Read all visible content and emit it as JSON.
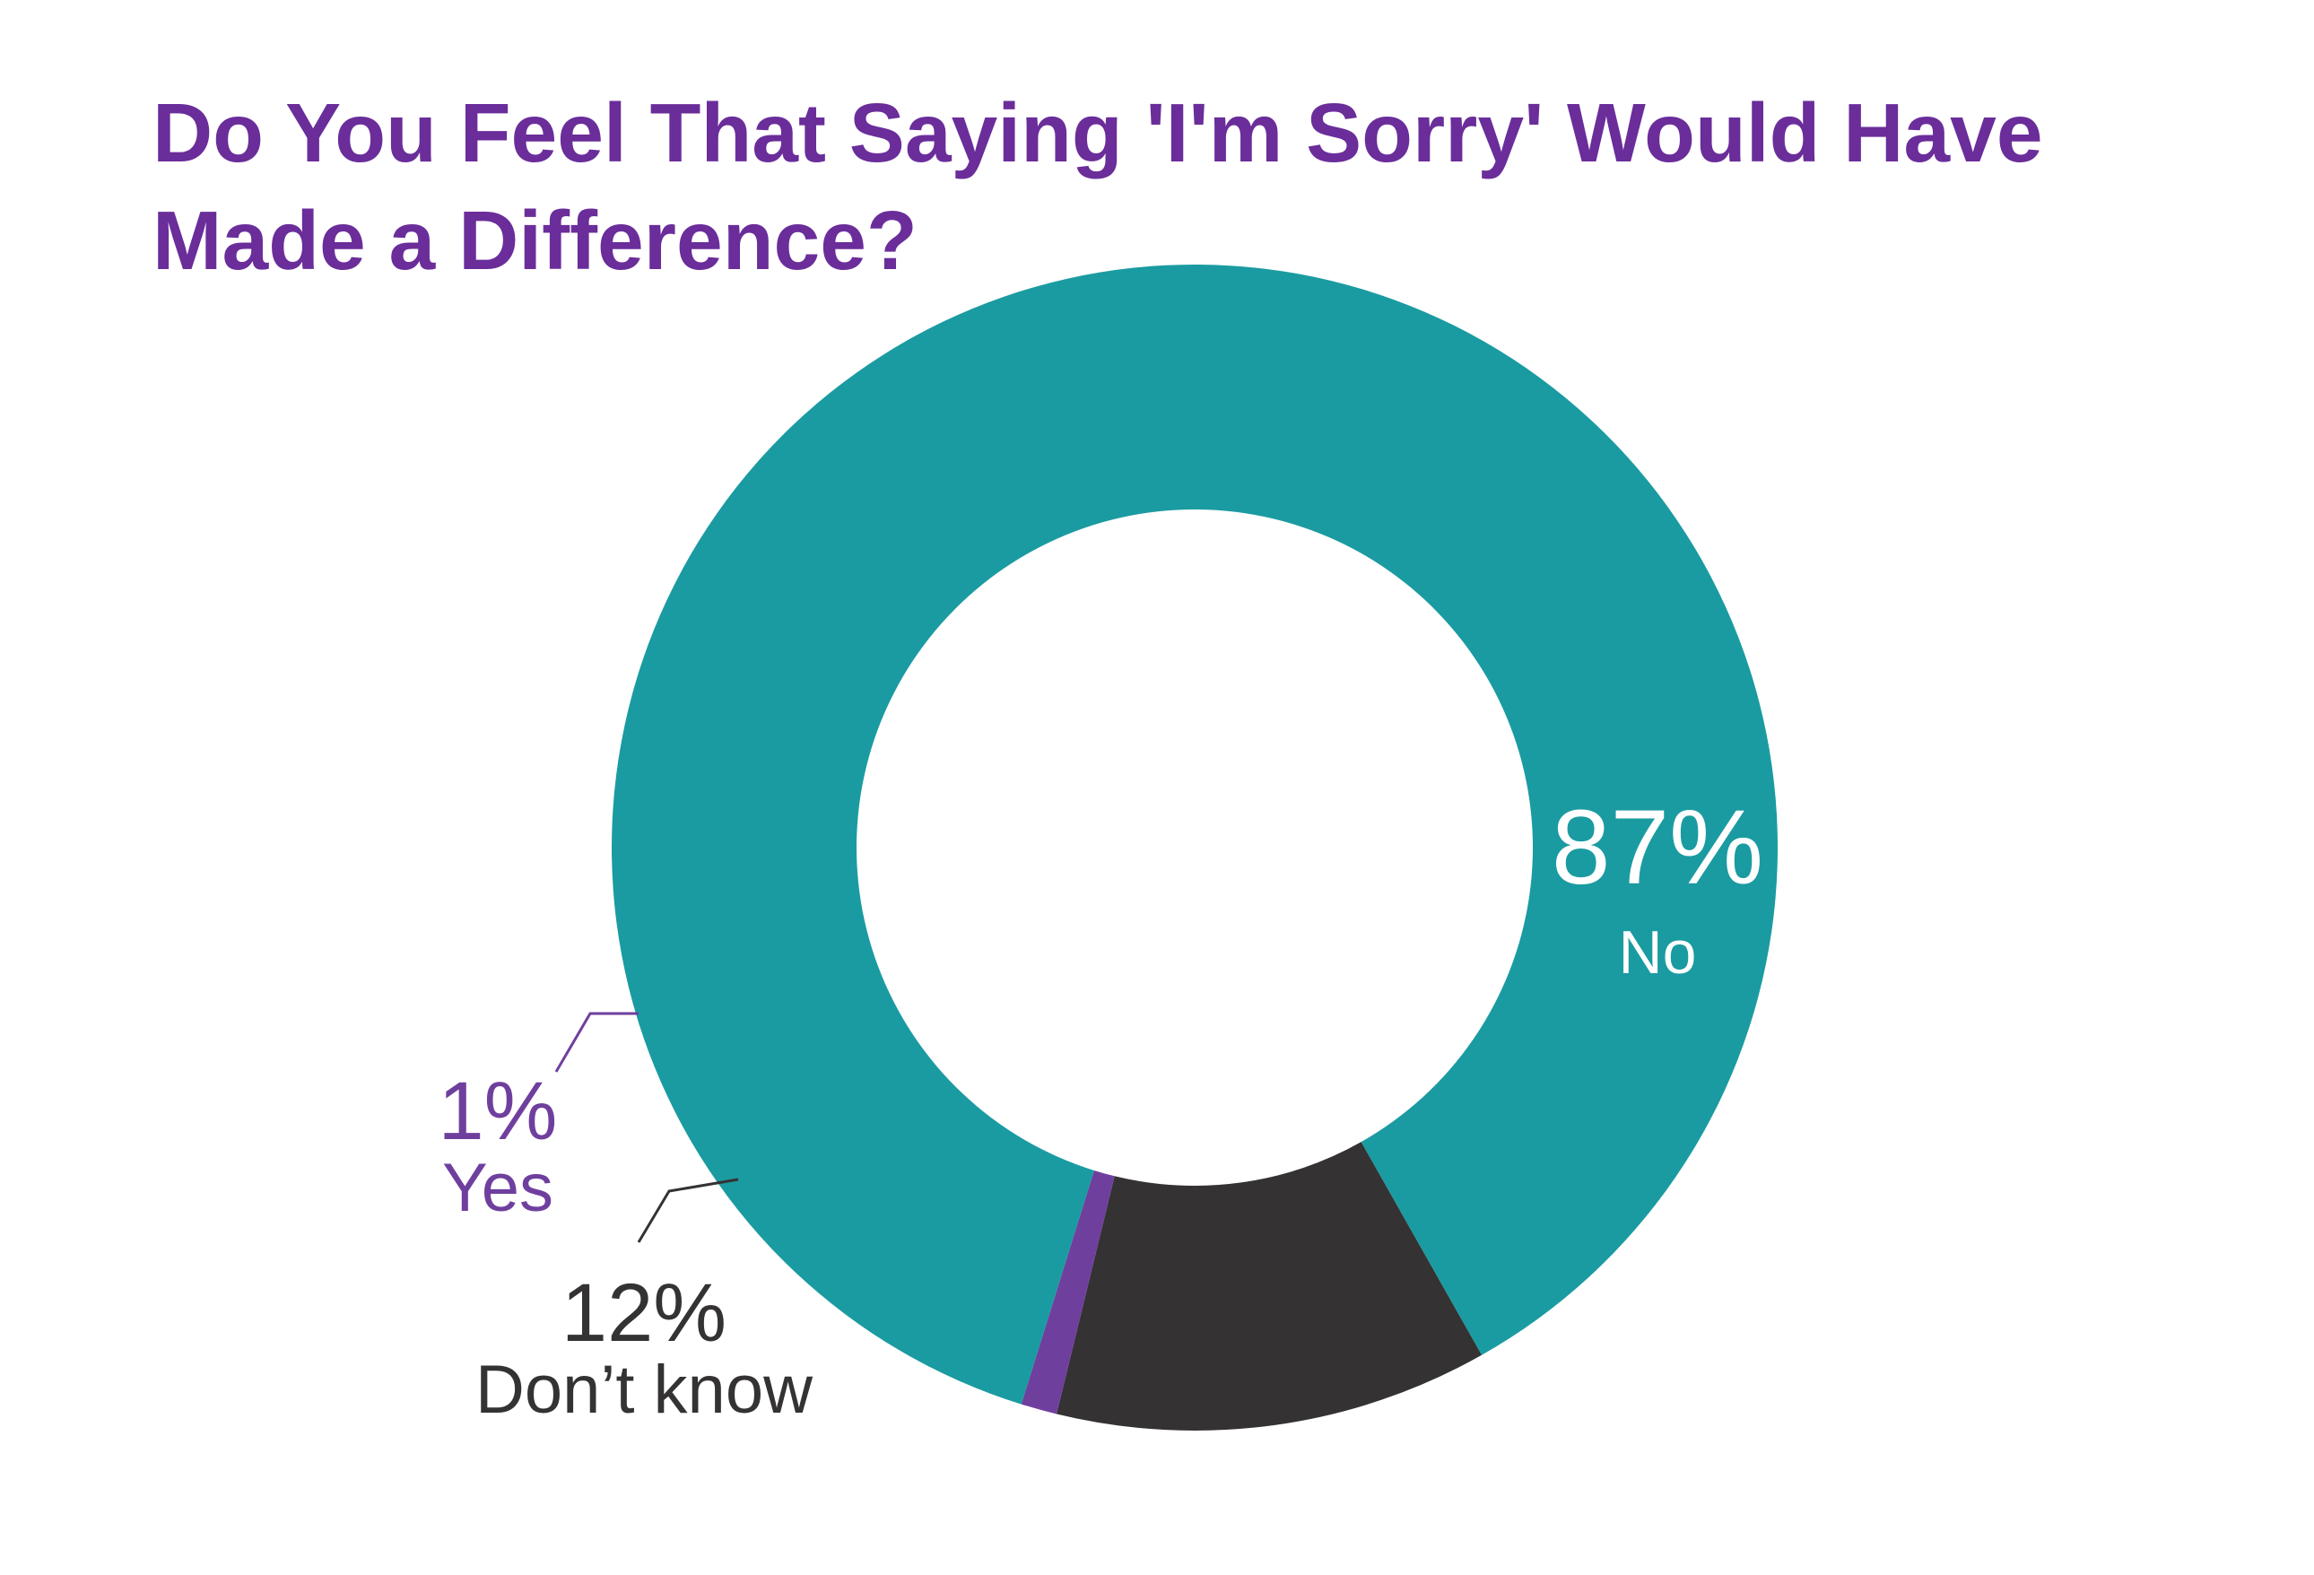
{
  "chart_data": {
    "type": "pie",
    "variant": "donut",
    "title": "Do You Feel That Saying 'I'm Sorry' Would Have Made a Difference?",
    "slices": [
      {
        "label": "No",
        "value": 87,
        "display": "87%",
        "color": "#1a9ba1",
        "label_color": "#ffffff"
      },
      {
        "label": "Don’t know",
        "value": 12,
        "display": "12%",
        "color": "#343233",
        "label_color": "#343233"
      },
      {
        "label": "Yes",
        "value": 1,
        "display": "1%",
        "color": "#6f3f9e",
        "label_color": "#6f3f9e"
      }
    ]
  }
}
